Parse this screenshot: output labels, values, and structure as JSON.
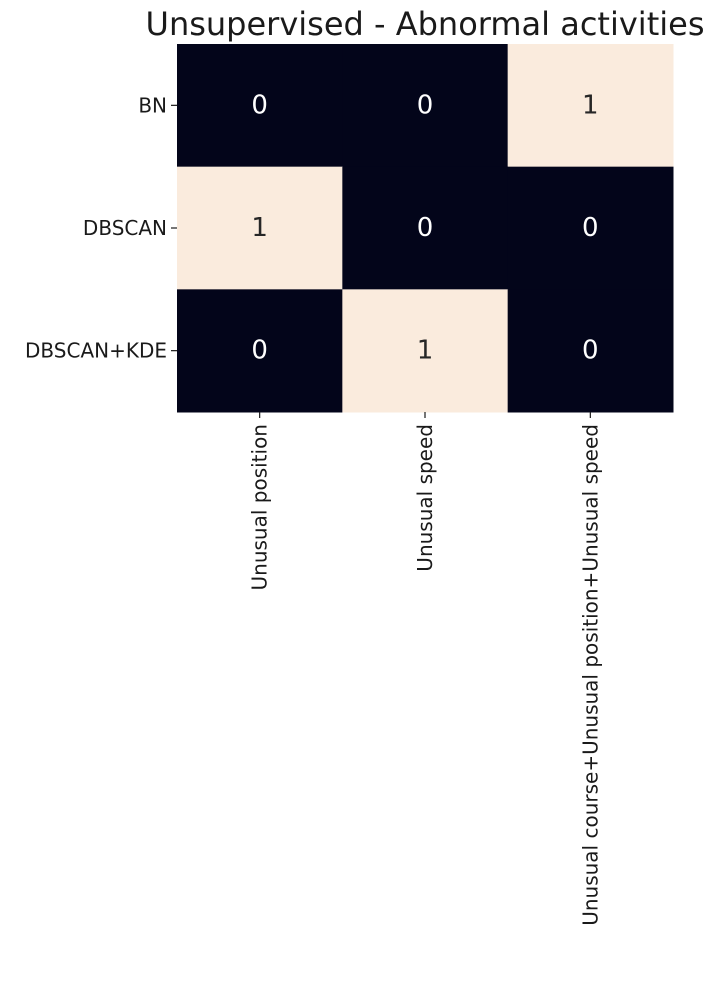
{
  "chart_data": {
    "type": "heatmap",
    "title": "Unsupervised - Abnormal activities",
    "rows": [
      "BN",
      "DBSCAN",
      "DBSCAN+KDE"
    ],
    "columns": [
      "Unusual position",
      "Unusual speed",
      "Unusual course+Unusual position+Unusual speed"
    ],
    "values": [
      [
        0,
        0,
        1
      ],
      [
        1,
        0,
        0
      ],
      [
        0,
        1,
        0
      ]
    ],
    "value_range": [
      0,
      1
    ],
    "annotations": true,
    "colorbar": false,
    "colors": {
      "low": "#03051a",
      "high": "#faebdd",
      "text_on_low": "#ffffff",
      "text_on_high": "#262626"
    }
  }
}
